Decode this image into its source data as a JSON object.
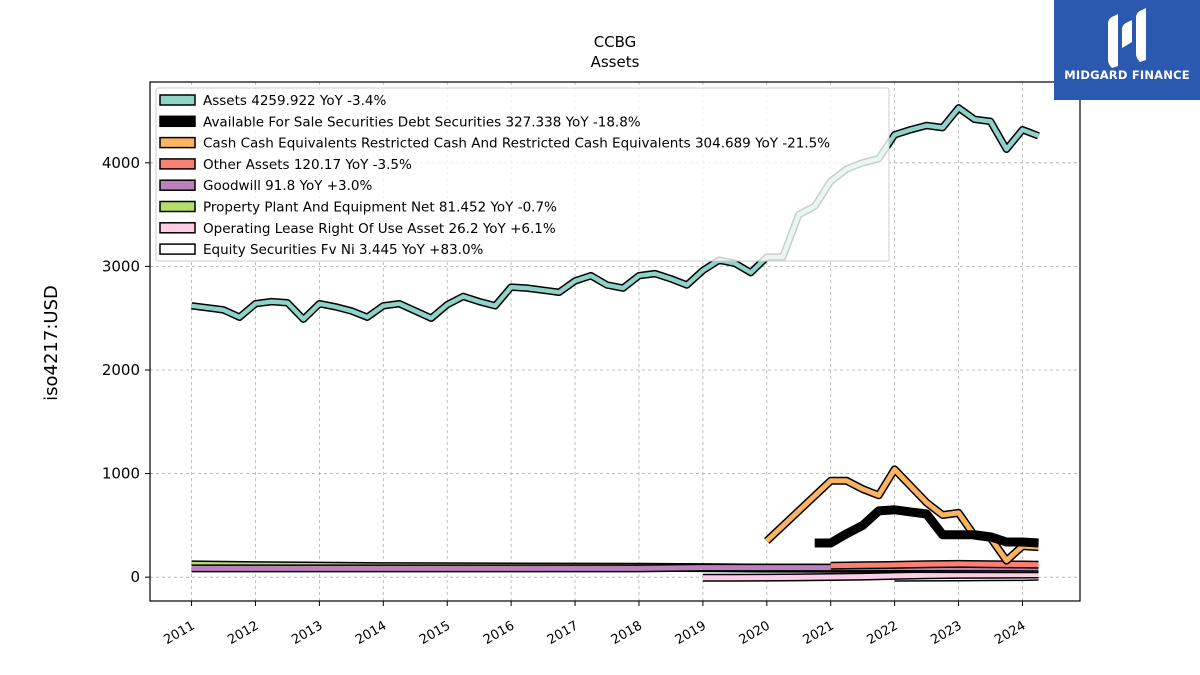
{
  "brand": {
    "name": "MIDGARD FINANCE",
    "color": "#2c59b0"
  },
  "chart_data": {
    "type": "line",
    "title": "CCBG",
    "subtitle": "Assets",
    "xlabel": "",
    "ylabel": "iso4217:USD",
    "xlim": [
      2010.35,
      2024.9
    ],
    "ylim": [
      -230,
      4780
    ],
    "yticks": [
      0,
      1000,
      2000,
      3000,
      4000
    ],
    "xticks": [
      "2011",
      "2012",
      "2013",
      "2014",
      "2015",
      "2016",
      "2017",
      "2018",
      "2019",
      "2020",
      "2021",
      "2022",
      "2023",
      "2024"
    ],
    "grid": true,
    "legend_position": "top-left",
    "series": [
      {
        "name": "Assets",
        "legend": "Assets  4259.922 YoY -3.4%",
        "color": "#8dd3c7",
        "points": [
          [
            2011.0,
            2620
          ],
          [
            2011.25,
            2600
          ],
          [
            2011.5,
            2580
          ],
          [
            2011.75,
            2510
          ],
          [
            2012.0,
            2640
          ],
          [
            2012.25,
            2660
          ],
          [
            2012.5,
            2650
          ],
          [
            2012.75,
            2490
          ],
          [
            2013.0,
            2640
          ],
          [
            2013.25,
            2610
          ],
          [
            2013.5,
            2570
          ],
          [
            2013.75,
            2510
          ],
          [
            2014.0,
            2620
          ],
          [
            2014.25,
            2640
          ],
          [
            2014.5,
            2570
          ],
          [
            2014.75,
            2500
          ],
          [
            2015.0,
            2630
          ],
          [
            2015.25,
            2710
          ],
          [
            2015.5,
            2660
          ],
          [
            2015.75,
            2620
          ],
          [
            2016.0,
            2800
          ],
          [
            2016.25,
            2790
          ],
          [
            2016.5,
            2770
          ],
          [
            2016.75,
            2750
          ],
          [
            2017.0,
            2860
          ],
          [
            2017.25,
            2910
          ],
          [
            2017.5,
            2820
          ],
          [
            2017.75,
            2790
          ],
          [
            2018.0,
            2910
          ],
          [
            2018.25,
            2930
          ],
          [
            2018.5,
            2880
          ],
          [
            2018.75,
            2820
          ],
          [
            2019.0,
            2960
          ],
          [
            2019.25,
            3060
          ],
          [
            2019.5,
            3030
          ],
          [
            2019.75,
            2940
          ],
          [
            2020.0,
            3090
          ],
          [
            2020.25,
            3090
          ],
          [
            2020.5,
            3500
          ],
          [
            2020.75,
            3580
          ],
          [
            2021.0,
            3820
          ],
          [
            2021.25,
            3940
          ],
          [
            2021.5,
            4000
          ],
          [
            2021.75,
            4040
          ],
          [
            2022.0,
            4270
          ],
          [
            2022.25,
            4320
          ],
          [
            2022.5,
            4360
          ],
          [
            2022.75,
            4340
          ],
          [
            2023.0,
            4530
          ],
          [
            2023.25,
            4420
          ],
          [
            2023.5,
            4400
          ],
          [
            2023.75,
            4130
          ],
          [
            2024.0,
            4320
          ],
          [
            2024.25,
            4260
          ]
        ]
      },
      {
        "name": "Available For Sale Securities Debt Securities",
        "legend": "Available For Sale Securities Debt Securities  327.338 YoY -18.8%",
        "color": "#000000",
        "points": [
          [
            2020.75,
            330
          ],
          [
            2021.0,
            330
          ],
          [
            2021.25,
            420
          ],
          [
            2021.5,
            500
          ],
          [
            2021.75,
            640
          ],
          [
            2022.0,
            650
          ],
          [
            2022.25,
            630
          ],
          [
            2022.5,
            610
          ],
          [
            2022.75,
            410
          ],
          [
            2023.0,
            410
          ],
          [
            2023.25,
            410
          ],
          [
            2023.5,
            390
          ],
          [
            2023.75,
            340
          ],
          [
            2024.0,
            340
          ],
          [
            2024.25,
            330
          ]
        ]
      },
      {
        "name": "Cash Cash Equivalents Restricted Cash And Restricted Cash Equivalents",
        "legend": "Cash Cash Equivalents Restricted Cash And Restricted Cash Equivalents  304.689 YoY -21.5%",
        "color": "#fdb462",
        "points": [
          [
            2020.0,
            350
          ],
          [
            2021.0,
            930
          ],
          [
            2021.25,
            930
          ],
          [
            2021.5,
            850
          ],
          [
            2021.75,
            790
          ],
          [
            2022.0,
            1040
          ],
          [
            2022.25,
            880
          ],
          [
            2022.5,
            720
          ],
          [
            2022.75,
            600
          ],
          [
            2023.0,
            620
          ],
          [
            2023.25,
            400
          ],
          [
            2023.5,
            380
          ],
          [
            2023.75,
            160
          ],
          [
            2024.0,
            300
          ],
          [
            2024.25,
            290
          ]
        ]
      },
      {
        "name": "Other Assets",
        "legend": "Other Assets  120.17 YoY -3.5%",
        "color": "#fb8072",
        "points": [
          [
            2021.0,
            110
          ],
          [
            2021.5,
            115
          ],
          [
            2022.0,
            118
          ],
          [
            2022.5,
            125
          ],
          [
            2023.0,
            128
          ],
          [
            2023.5,
            124
          ],
          [
            2024.0,
            122
          ],
          [
            2024.25,
            120
          ]
        ]
      },
      {
        "name": "Goodwill",
        "legend": "Goodwill  91.8 YoY +3.0%",
        "color": "#bc80bd",
        "points": [
          [
            2011.0,
            84.8
          ],
          [
            2012.0,
            84.8
          ],
          [
            2013.0,
            84.8
          ],
          [
            2014.0,
            84.8
          ],
          [
            2015.0,
            84.8
          ],
          [
            2016.0,
            84.8
          ],
          [
            2017.0,
            84.8
          ],
          [
            2018.0,
            84.8
          ],
          [
            2019.0,
            92.8
          ],
          [
            2020.0,
            92.8
          ],
          [
            2021.0,
            92.8
          ],
          [
            2022.0,
            93.3
          ],
          [
            2023.0,
            93.3
          ],
          [
            2024.25,
            91.8
          ]
        ]
      },
      {
        "name": "Property Plant And Equipment Net",
        "legend": "Property Plant And Equipment Net  81.452 YoY -0.7%",
        "color": "#b3de69",
        "points": [
          [
            2011.0,
            118
          ],
          [
            2012.0,
            112
          ],
          [
            2013.0,
            107
          ],
          [
            2014.0,
            102
          ],
          [
            2015.0,
            100
          ],
          [
            2016.0,
            98
          ],
          [
            2017.0,
            97
          ],
          [
            2018.0,
            95
          ],
          [
            2019.0,
            92
          ],
          [
            2020.0,
            88
          ],
          [
            2021.0,
            86
          ],
          [
            2022.0,
            84
          ],
          [
            2023.0,
            83
          ],
          [
            2024.0,
            82
          ],
          [
            2024.25,
            81.5
          ]
        ]
      },
      {
        "name": "Operating Lease Right Of Use Asset",
        "legend": "Operating Lease Right Of Use Asset  26.2 YoY +6.1%",
        "color": "#fccde5",
        "points": [
          [
            2019.0,
            -5
          ],
          [
            2019.5,
            -5
          ],
          [
            2020.0,
            -4
          ],
          [
            2020.5,
            -2
          ],
          [
            2021.0,
            2
          ],
          [
            2021.5,
            6
          ],
          [
            2022.0,
            12
          ],
          [
            2022.5,
            18
          ],
          [
            2023.0,
            22
          ],
          [
            2023.5,
            24
          ],
          [
            2024.0,
            25
          ],
          [
            2024.25,
            26.2
          ]
        ]
      },
      {
        "name": "Equity Securities Fv Ni",
        "legend": "Equity Securities Fv Ni  3.445 YoY +83.0%",
        "color": "#ffffff",
        "points": [
          [
            2022.0,
            -5
          ],
          [
            2022.5,
            -4
          ],
          [
            2023.0,
            -3
          ],
          [
            2023.5,
            -1
          ],
          [
            2024.0,
            1
          ],
          [
            2024.25,
            3.4
          ]
        ]
      }
    ]
  }
}
